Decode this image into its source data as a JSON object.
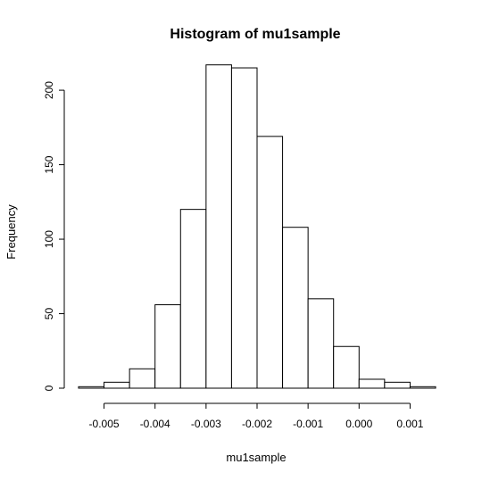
{
  "chart_data": {
    "type": "bar",
    "title": "Histogram of mu1sample",
    "xlabel": "mu1sample",
    "ylabel": "Frequency",
    "bins": [
      {
        "start": -0.0055,
        "end": -0.005,
        "count": 1
      },
      {
        "start": -0.005,
        "end": -0.0045,
        "count": 4
      },
      {
        "start": -0.0045,
        "end": -0.004,
        "count": 13
      },
      {
        "start": -0.004,
        "end": -0.0035,
        "count": 56
      },
      {
        "start": -0.0035,
        "end": -0.003,
        "count": 120
      },
      {
        "start": -0.003,
        "end": -0.0025,
        "count": 217
      },
      {
        "start": -0.0025,
        "end": -0.002,
        "count": 215
      },
      {
        "start": -0.002,
        "end": -0.0015,
        "count": 169
      },
      {
        "start": -0.0015,
        "end": -0.001,
        "count": 108
      },
      {
        "start": -0.001,
        "end": -0.0005,
        "count": 60
      },
      {
        "start": -0.0005,
        "end": 0.0,
        "count": 28
      },
      {
        "start": 0.0,
        "end": 0.0005,
        "count": 6
      },
      {
        "start": 0.0005,
        "end": 0.001,
        "count": 4
      },
      {
        "start": 0.001,
        "end": 0.0015,
        "count": 1
      }
    ],
    "x_ticks": [
      {
        "value": -0.005,
        "label": "-0.005"
      },
      {
        "value": -0.004,
        "label": "-0.004"
      },
      {
        "value": -0.003,
        "label": "-0.003"
      },
      {
        "value": -0.002,
        "label": "-0.002"
      },
      {
        "value": -0.001,
        "label": "-0.001"
      },
      {
        "value": 0.0,
        "label": "0.000"
      },
      {
        "value": 0.001,
        "label": "0.001"
      }
    ],
    "y_ticks": [
      {
        "value": 0,
        "label": "0"
      },
      {
        "value": 50,
        "label": "50"
      },
      {
        "value": 100,
        "label": "100"
      },
      {
        "value": 150,
        "label": "150"
      },
      {
        "value": 200,
        "label": "200"
      }
    ],
    "xlim": [
      -0.0055,
      0.0015
    ],
    "ylim": [
      0,
      230
    ],
    "grid": false,
    "legend": "none"
  }
}
